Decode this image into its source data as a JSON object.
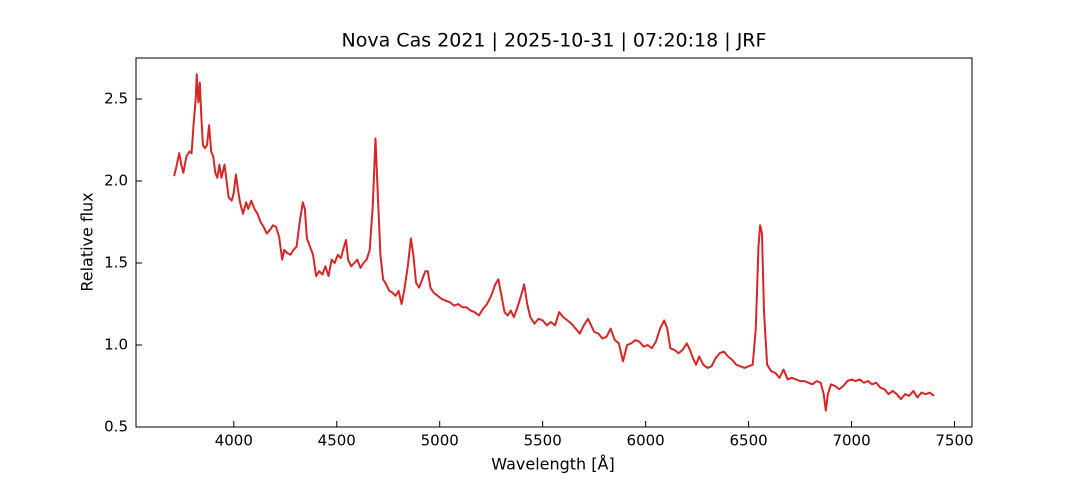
{
  "chart_data": {
    "type": "line",
    "title": "Nova Cas 2021 | 2025-10-31 | 07:20:18 | JRF",
    "x_label": "Wavelength [Å]",
    "y_label": "Relative flux",
    "color": "#d62728",
    "xlim": [
      3525,
      7585
    ],
    "ylim": [
      0.5,
      2.75
    ],
    "xticks": [
      4000,
      4500,
      5000,
      5500,
      6000,
      6500,
      7000,
      7500
    ],
    "yticks": [
      0.5,
      {
        "value": 1,
        "label": "1.0"
      },
      1.5,
      {
        "value": 2,
        "label": "2.0"
      },
      2.5
    ],
    "x": [
      3710,
      3720,
      3735,
      3745,
      3755,
      3770,
      3785,
      3795,
      3805,
      3815,
      3820,
      3828,
      3835,
      3842,
      3850,
      3860,
      3870,
      3880,
      3890,
      3900,
      3910,
      3920,
      3930,
      3940,
      3955,
      3965,
      3975,
      3990,
      4000,
      4010,
      4020,
      4030,
      4045,
      4060,
      4070,
      4085,
      4100,
      4115,
      4130,
      4145,
      4160,
      4175,
      4190,
      4205,
      4220,
      4235,
      4245,
      4260,
      4275,
      4290,
      4305,
      4320,
      4335,
      4345,
      4355,
      4370,
      4385,
      4400,
      4415,
      4430,
      4445,
      4460,
      4475,
      4490,
      4505,
      4520,
      4535,
      4545,
      4555,
      4570,
      4585,
      4600,
      4615,
      4630,
      4645,
      4660,
      4675,
      4688,
      4700,
      4712,
      4725,
      4740,
      4755,
      4770,
      4785,
      4800,
      4815,
      4830,
      4845,
      4860,
      4872,
      4885,
      4900,
      4915,
      4930,
      4942,
      4955,
      4970,
      4990,
      5010,
      5030,
      5050,
      5070,
      5090,
      5110,
      5130,
      5150,
      5170,
      5190,
      5210,
      5230,
      5250,
      5270,
      5285,
      5300,
      5315,
      5330,
      5345,
      5360,
      5375,
      5395,
      5410,
      5425,
      5440,
      5460,
      5480,
      5500,
      5520,
      5540,
      5560,
      5580,
      5600,
      5620,
      5640,
      5660,
      5680,
      5700,
      5720,
      5735,
      5750,
      5770,
      5790,
      5810,
      5830,
      5850,
      5870,
      5890,
      5910,
      5930,
      5950,
      5970,
      5990,
      6010,
      6030,
      6050,
      6070,
      6090,
      6105,
      6120,
      6140,
      6160,
      6180,
      6200,
      6215,
      6230,
      6245,
      6260,
      6280,
      6300,
      6320,
      6340,
      6360,
      6380,
      6400,
      6420,
      6440,
      6460,
      6480,
      6500,
      6520,
      6535,
      6548,
      6556,
      6565,
      6575,
      6590,
      6610,
      6630,
      6650,
      6670,
      6690,
      6710,
      6730,
      6750,
      6770,
      6790,
      6810,
      6830,
      6850,
      6865,
      6875,
      6885,
      6900,
      6920,
      6940,
      6960,
      6980,
      7000,
      7020,
      7040,
      7060,
      7080,
      7100,
      7120,
      7140,
      7160,
      7180,
      7200,
      7220,
      7240,
      7260,
      7280,
      7300,
      7320,
      7340,
      7360,
      7380,
      7400
    ],
    "values": [
      2.03,
      2.08,
      2.17,
      2.1,
      2.05,
      2.15,
      2.18,
      2.17,
      2.35,
      2.5,
      2.65,
      2.48,
      2.6,
      2.4,
      2.22,
      2.2,
      2.22,
      2.34,
      2.18,
      2.15,
      2.05,
      2.02,
      2.1,
      2.02,
      2.1,
      2.0,
      1.9,
      1.88,
      1.93,
      2.04,
      1.95,
      1.87,
      1.8,
      1.87,
      1.83,
      1.88,
      1.83,
      1.8,
      1.75,
      1.72,
      1.68,
      1.7,
      1.73,
      1.72,
      1.66,
      1.52,
      1.58,
      1.56,
      1.55,
      1.58,
      1.6,
      1.75,
      1.87,
      1.83,
      1.65,
      1.6,
      1.55,
      1.42,
      1.45,
      1.43,
      1.48,
      1.42,
      1.52,
      1.5,
      1.55,
      1.53,
      1.6,
      1.64,
      1.52,
      1.48,
      1.5,
      1.52,
      1.47,
      1.5,
      1.52,
      1.58,
      1.85,
      2.26,
      1.9,
      1.55,
      1.4,
      1.37,
      1.33,
      1.32,
      1.3,
      1.33,
      1.25,
      1.35,
      1.48,
      1.65,
      1.55,
      1.38,
      1.35,
      1.4,
      1.45,
      1.45,
      1.35,
      1.32,
      1.3,
      1.28,
      1.27,
      1.26,
      1.24,
      1.25,
      1.23,
      1.23,
      1.21,
      1.2,
      1.18,
      1.22,
      1.25,
      1.3,
      1.37,
      1.4,
      1.3,
      1.2,
      1.18,
      1.21,
      1.17,
      1.22,
      1.3,
      1.37,
      1.25,
      1.17,
      1.13,
      1.16,
      1.15,
      1.12,
      1.14,
      1.12,
      1.2,
      1.17,
      1.15,
      1.13,
      1.1,
      1.07,
      1.12,
      1.16,
      1.12,
      1.08,
      1.07,
      1.04,
      1.05,
      1.1,
      1.03,
      1.01,
      0.9,
      1.0,
      1.01,
      1.03,
      1.02,
      0.99,
      1.0,
      0.98,
      1.02,
      1.1,
      1.15,
      1.1,
      0.98,
      0.97,
      0.95,
      0.97,
      1.01,
      0.97,
      0.92,
      0.88,
      0.93,
      0.88,
      0.86,
      0.87,
      0.92,
      0.95,
      0.96,
      0.93,
      0.91,
      0.88,
      0.87,
      0.86,
      0.87,
      0.88,
      1.1,
      1.6,
      1.73,
      1.68,
      1.2,
      0.88,
      0.84,
      0.83,
      0.8,
      0.85,
      0.79,
      0.8,
      0.79,
      0.78,
      0.78,
      0.77,
      0.76,
      0.78,
      0.77,
      0.7,
      0.6,
      0.7,
      0.76,
      0.75,
      0.73,
      0.75,
      0.78,
      0.79,
      0.78,
      0.79,
      0.77,
      0.78,
      0.76,
      0.77,
      0.74,
      0.73,
      0.7,
      0.72,
      0.7,
      0.67,
      0.7,
      0.69,
      0.72,
      0.68,
      0.71,
      0.7,
      0.71,
      0.69
    ]
  }
}
